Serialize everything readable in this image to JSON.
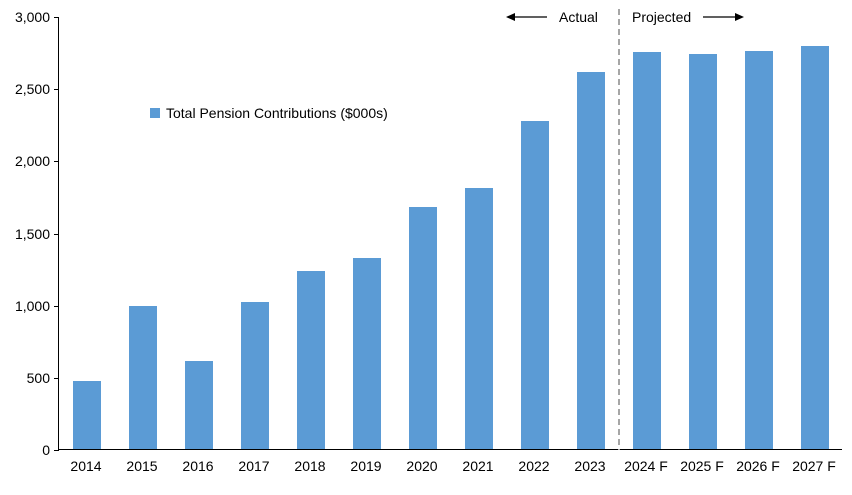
{
  "chart_data": {
    "type": "bar",
    "title": "",
    "legend": "Total Pension Contributions ($000s)",
    "legend_position": "inside-upper-left",
    "categories": [
      "2014",
      "2015",
      "2016",
      "2017",
      "2018",
      "2019",
      "2020",
      "2021",
      "2022",
      "2023",
      "2024 F",
      "2025 F",
      "2026 F",
      "2027 F"
    ],
    "values": [
      470,
      990,
      610,
      1020,
      1230,
      1320,
      1680,
      1810,
      2270,
      2610,
      2750,
      2740,
      2760,
      2790
    ],
    "xlabel": "",
    "ylabel": "",
    "ylim": [
      0,
      3000
    ],
    "ytick_interval": 500,
    "ytick_labels": [
      "0",
      "500",
      "1,000",
      "1,500",
      "2,000",
      "2,500",
      "3,000"
    ],
    "grid": false,
    "bar_color": "#5b9bd5",
    "axis_color": "#000000",
    "divider": {
      "after_category": "2023",
      "after_index": 9,
      "style": "dashed",
      "color": "#a6a6a6"
    },
    "annotations": [
      {
        "text": "Actual",
        "side": "left-of-divider",
        "arrow": "left"
      },
      {
        "text": "Projected",
        "side": "right-of-divider",
        "arrow": "right"
      }
    ]
  }
}
